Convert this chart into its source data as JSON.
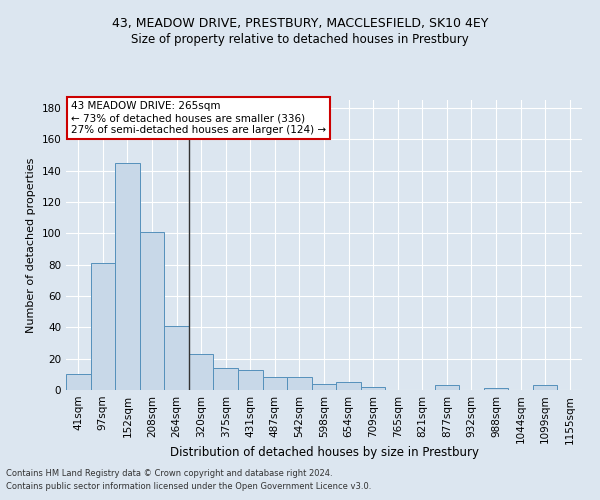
{
  "title1": "43, MEADOW DRIVE, PRESTBURY, MACCLESFIELD, SK10 4EY",
  "title2": "Size of property relative to detached houses in Prestbury",
  "xlabel": "Distribution of detached houses by size in Prestbury",
  "ylabel": "Number of detached properties",
  "categories": [
    "41sqm",
    "97sqm",
    "152sqm",
    "208sqm",
    "264sqm",
    "320sqm",
    "375sqm",
    "431sqm",
    "487sqm",
    "542sqm",
    "598sqm",
    "654sqm",
    "709sqm",
    "765sqm",
    "821sqm",
    "877sqm",
    "932sqm",
    "988sqm",
    "1044sqm",
    "1099sqm",
    "1155sqm"
  ],
  "values": [
    10,
    81,
    145,
    101,
    41,
    23,
    14,
    13,
    8,
    8,
    4,
    5,
    2,
    0,
    0,
    3,
    0,
    1,
    0,
    3,
    0
  ],
  "bar_color": "#c8d8e8",
  "bar_edge_color": "#5590bb",
  "vline_index": 4,
  "vline_color": "#333333",
  "annotation_text": "43 MEADOW DRIVE: 265sqm\n← 73% of detached houses are smaller (336)\n27% of semi-detached houses are larger (124) →",
  "annotation_box_color": "#ffffff",
  "annotation_box_edge": "#cc0000",
  "bg_color": "#dce6f0",
  "plot_bg_color": "#dce6f0",
  "fig_bg_color": "#dce6f0",
  "grid_color": "#ffffff",
  "footer1": "Contains HM Land Registry data © Crown copyright and database right 2024.",
  "footer2": "Contains public sector information licensed under the Open Government Licence v3.0.",
  "ylim": [
    0,
    185
  ],
  "yticks": [
    0,
    20,
    40,
    60,
    80,
    100,
    120,
    140,
    160,
    180
  ]
}
